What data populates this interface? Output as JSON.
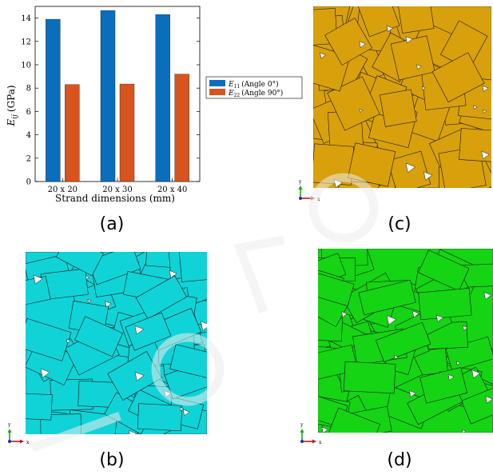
{
  "captions": {
    "a": "(a)",
    "b": "(b)",
    "c": "(c)",
    "d": "(d)"
  },
  "chart_data": {
    "type": "bar",
    "categories": [
      "20 x 20",
      "20 x 30",
      "20 x 40"
    ],
    "series": [
      {
        "name": "E11 (Angle 0°)",
        "values": [
          13.9,
          14.65,
          14.3
        ],
        "color": "#0a6ebd"
      },
      {
        "name": "E22 (Angle 90°)",
        "values": [
          8.3,
          8.35,
          9.2
        ],
        "color": "#d9531e"
      }
    ],
    "xlabel": "Strand dimensions (mm)",
    "ylabel": "Eij (GPa)",
    "ylim": [
      0,
      15
    ],
    "yticks": [
      0,
      2,
      4,
      6,
      8,
      10,
      12,
      14
    ],
    "grid": false,
    "legend_position": "right"
  },
  "legend": {
    "e11_symbol": "E",
    "e11_sub": "11",
    "e11_text": "(Angle 0°)",
    "e22_symbol": "E",
    "e22_sub": "22",
    "e22_text": "(Angle 90°)"
  },
  "axis": {
    "ylabel_symbol": "E",
    "ylabel_sub": "ij",
    "ylabel_units": "(GPa)"
  },
  "triad": {
    "x": "x",
    "y": "y"
  },
  "colors": {
    "panel_b": "#0fd3d7",
    "panel_c": "#d8a00b",
    "panel_d": "#14d414",
    "outline": "#1a1a1a"
  }
}
